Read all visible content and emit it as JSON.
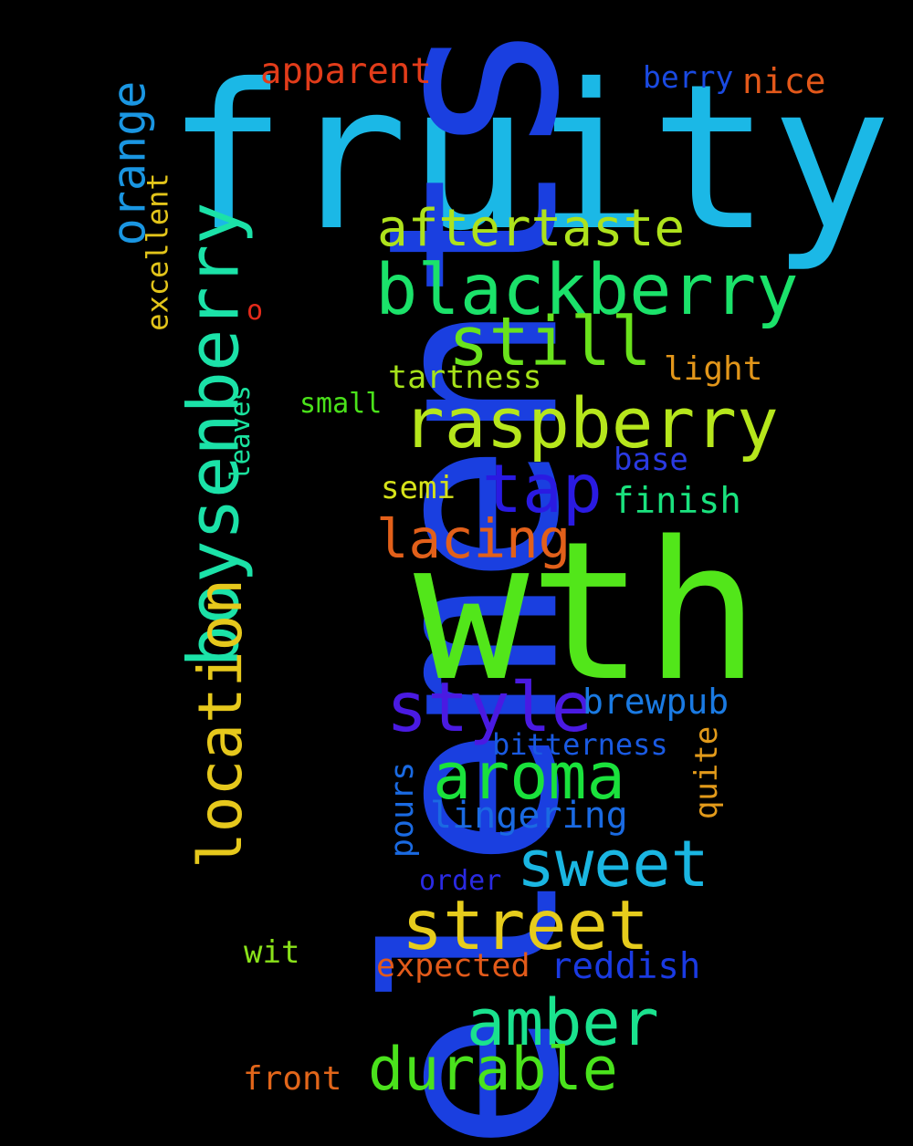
{
  "words": [
    {
      "text": "fruity",
      "color": "#1bb8e6",
      "vertical": false
    },
    {
      "text": "elements",
      "color": "#1a3fe0",
      "vertical": true
    },
    {
      "text": "wth",
      "color": "#52e61a",
      "vertical": false
    },
    {
      "text": "boysenberry",
      "color": "#1be2a8",
      "vertical": true
    },
    {
      "text": "blackberry",
      "color": "#1be26a",
      "vertical": false
    },
    {
      "text": "raspberry",
      "color": "#b6e61c",
      "vertical": false
    },
    {
      "text": "location",
      "color": "#e6c81c",
      "vertical": true
    },
    {
      "text": "street",
      "color": "#e6cc1c",
      "vertical": false
    },
    {
      "text": "sweet",
      "color": "#1ab6e2",
      "vertical": false
    },
    {
      "text": "aroma",
      "color": "#1ae23c",
      "vertical": false
    },
    {
      "text": "amber",
      "color": "#1ae28e",
      "vertical": false
    },
    {
      "text": "durable",
      "color": "#4ae21c",
      "vertical": false
    },
    {
      "text": "style",
      "color": "#4a1ae2",
      "vertical": false
    },
    {
      "text": "still",
      "color": "#6ae21c",
      "vertical": false
    },
    {
      "text": "tap",
      "color": "#2a1ae2",
      "vertical": false
    },
    {
      "text": "aftertaste",
      "color": "#aee21c",
      "vertical": false
    },
    {
      "text": "orange",
      "color": "#1a96e2",
      "vertical": true
    },
    {
      "text": "lacing",
      "color": "#e2601a",
      "vertical": false
    },
    {
      "text": "apparent",
      "color": "#e23c1a",
      "vertical": false
    },
    {
      "text": "nice",
      "color": "#e2581a",
      "vertical": false
    },
    {
      "text": "berry",
      "color": "#1a4ae2",
      "vertical": false
    },
    {
      "text": "excellent",
      "color": "#e2c41a",
      "vertical": true
    },
    {
      "text": "light",
      "color": "#e2961a",
      "vertical": false
    },
    {
      "text": "tartness",
      "color": "#a6e21a",
      "vertical": false
    },
    {
      "text": "small",
      "color": "#4ae21a",
      "vertical": false
    },
    {
      "text": "leaves",
      "color": "#1ae29e",
      "vertical": true
    },
    {
      "text": "base",
      "color": "#2a3ae2",
      "vertical": false
    },
    {
      "text": "finish",
      "color": "#1ae27e",
      "vertical": false
    },
    {
      "text": "semi",
      "color": "#d6e21a",
      "vertical": false
    },
    {
      "text": "brewpub",
      "color": "#1a7ae2",
      "vertical": false
    },
    {
      "text": "bitterness",
      "color": "#1a5ae2",
      "vertical": false
    },
    {
      "text": "quite",
      "color": "#e29a1a",
      "vertical": true
    },
    {
      "text": "pours",
      "color": "#1a6ae2",
      "vertical": true
    },
    {
      "text": "lingering",
      "color": "#1a6ae2",
      "vertical": false
    },
    {
      "text": "order",
      "color": "#2a2ae2",
      "vertical": false
    },
    {
      "text": "wit",
      "color": "#8ae21a",
      "vertical": false
    },
    {
      "text": "expected",
      "color": "#e25a1a",
      "vertical": false
    },
    {
      "text": "reddish",
      "color": "#1a3ae2",
      "vertical": false
    },
    {
      "text": "front",
      "color": "#e2661a",
      "vertical": false
    },
    {
      "text": "o",
      "color": "#e22a1a",
      "vertical": false
    }
  ]
}
